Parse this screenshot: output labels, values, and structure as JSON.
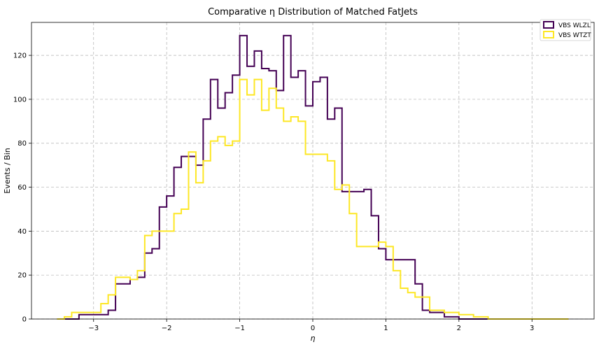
{
  "chart_data": {
    "type": "step-histogram",
    "title": "Comparative η Distribution of Matched FatJets",
    "xlabel": "η",
    "ylabel": "Events / Bin",
    "xlim": [
      -3.85,
      3.85
    ],
    "ylim": [
      0,
      135
    ],
    "xticks": [
      -3,
      -2,
      -1,
      0,
      1,
      2,
      3
    ],
    "xtick_labels": [
      "−3",
      "−2",
      "−1",
      "0",
      "1",
      "2",
      "3"
    ],
    "yticks": [
      0,
      20,
      40,
      60,
      80,
      100,
      120
    ],
    "grid": true,
    "legend_position": "top-right",
    "bin_edges": [
      -3.5,
      -3.4,
      -3.3,
      -3.2,
      -3.1,
      -3.0,
      -2.9,
      -2.8,
      -2.7,
      -2.6,
      -2.5,
      -2.4,
      -2.3,
      -2.2,
      -2.1,
      -2.0,
      -1.9,
      -1.8,
      -1.7,
      -1.6,
      -1.5,
      -1.4,
      -1.3,
      -1.2,
      -1.1,
      -1.0,
      -0.9,
      -0.8,
      -0.7,
      -0.6,
      -0.5,
      -0.4,
      -0.3,
      -0.2,
      -0.1,
      0.0,
      0.1,
      0.2,
      0.3,
      0.4,
      0.5,
      0.6,
      0.7,
      0.8,
      0.9,
      1.0,
      1.1,
      1.2,
      1.3,
      1.4,
      1.5,
      1.6,
      1.7,
      1.8,
      1.9,
      2.0,
      2.1,
      2.2,
      2.3,
      2.4,
      2.5,
      2.6,
      2.7,
      2.8,
      2.9,
      3.0,
      3.1,
      3.2,
      3.3,
      3.4,
      3.5
    ],
    "series": [
      {
        "name": "VBS WLZL",
        "color": "#440154",
        "values": [
          0,
          0,
          0,
          2,
          2,
          2,
          2,
          4,
          16,
          16,
          18,
          19,
          30,
          32,
          51,
          56,
          69,
          74,
          74,
          70,
          91,
          109,
          96,
          103,
          111,
          129,
          115,
          122,
          114,
          113,
          104,
          129,
          110,
          113,
          97,
          108,
          110,
          91,
          96,
          58,
          58,
          58,
          59,
          47,
          32,
          27,
          27,
          27,
          27,
          16,
          4,
          3,
          3,
          1,
          1,
          0,
          0,
          0,
          0,
          0,
          0,
          0,
          0,
          0,
          0,
          0,
          0,
          0,
          0,
          0
        ]
      },
      {
        "name": "VBS WTZT",
        "color": "#fde725",
        "values": [
          0,
          1,
          3,
          3,
          3,
          3,
          7,
          11,
          19,
          19,
          18,
          22,
          38,
          40,
          40,
          40,
          48,
          50,
          76,
          62,
          72,
          81,
          83,
          79,
          81,
          109,
          102,
          109,
          95,
          105,
          96,
          90,
          92,
          90,
          75,
          75,
          75,
          72,
          59,
          61,
          48,
          33,
          33,
          33,
          35,
          33,
          22,
          14,
          12,
          10,
          10,
          4,
          4,
          3,
          3,
          2,
          2,
          1,
          1,
          0,
          0,
          0,
          0,
          0,
          0,
          0,
          0,
          0,
          0,
          0
        ]
      }
    ]
  }
}
